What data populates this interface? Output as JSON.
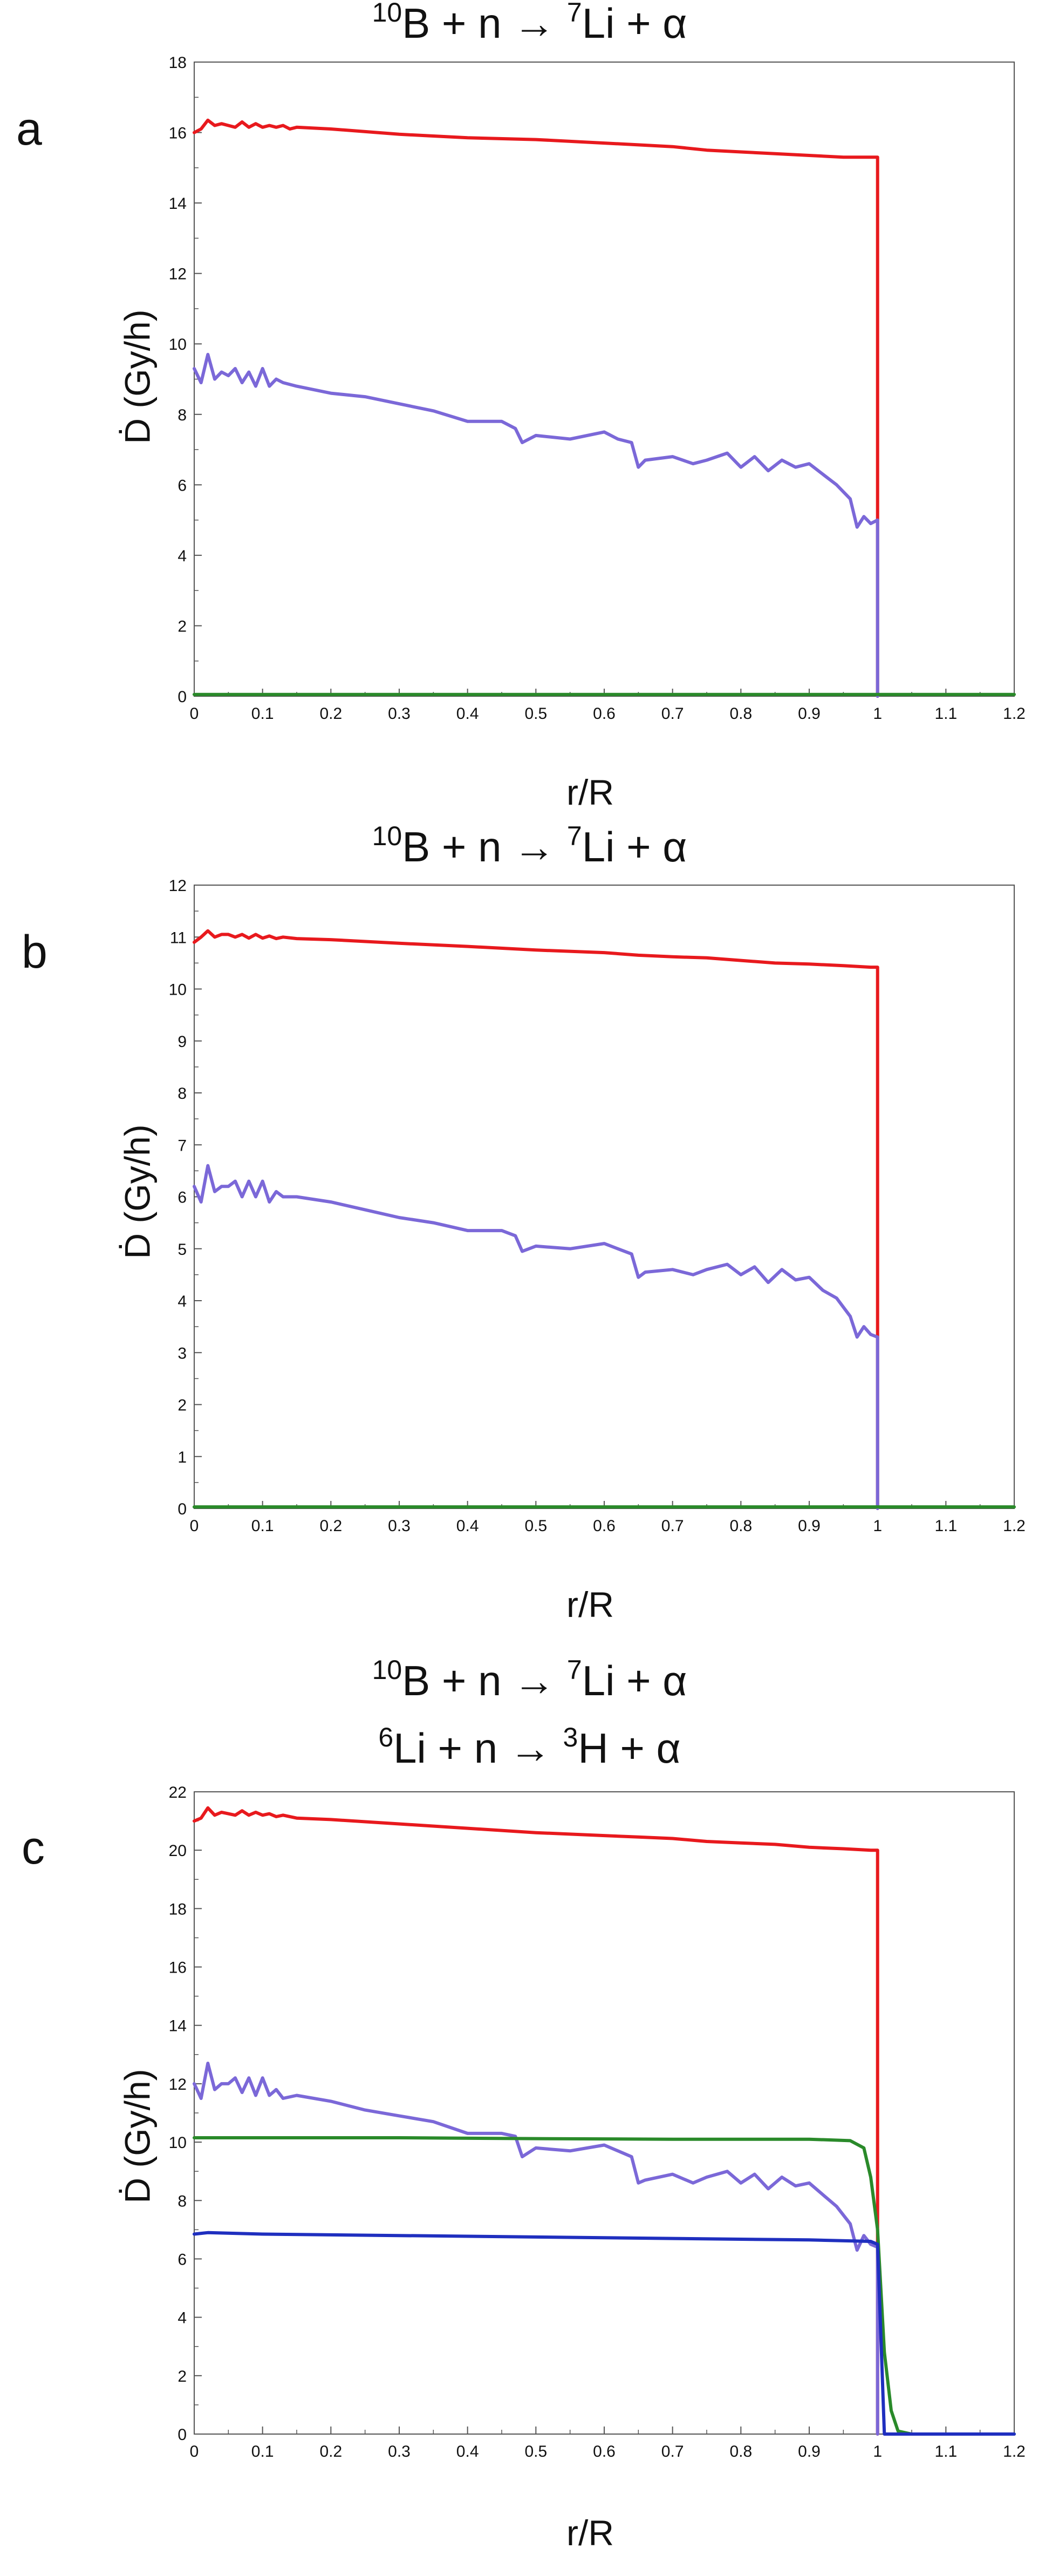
{
  "panels": [
    {
      "label": "a",
      "title_lines": [
        [
          {
            "sup": "10"
          },
          {
            "t": "B + n → "
          },
          {
            "sup": "7"
          },
          {
            "t": "Li + α"
          }
        ]
      ]
    },
    {
      "label": "b",
      "title_lines": [
        [
          {
            "sup": "10"
          },
          {
            "t": "B + n → "
          },
          {
            "sup": "7"
          },
          {
            "t": "Li + α"
          }
        ]
      ]
    },
    {
      "label": "c",
      "title_lines": [
        [
          {
            "sup": "10"
          },
          {
            "t": "B + n → "
          },
          {
            "sup": "7"
          },
          {
            "t": "Li + α"
          }
        ],
        [
          {
            "sup": "6"
          },
          {
            "t": "Li + n → "
          },
          {
            "sup": "3"
          },
          {
            "t": "H + α"
          }
        ]
      ]
    }
  ],
  "chart_data": [
    {
      "type": "line",
      "title": "10B + n → 7Li + α",
      "xlabel": "r/R",
      "ylabel": "Ḋ (Gy/h)",
      "xlim": [
        0,
        1.2
      ],
      "ylim": [
        0,
        18
      ],
      "xticks": [
        "0",
        "0.1",
        "0.2",
        "0.3",
        "0.4",
        "0.5",
        "0.6",
        "0.7",
        "0.8",
        "0.9",
        "1",
        "1.1",
        "1.2"
      ],
      "yticks": [
        "0",
        "2",
        "4",
        "6",
        "8",
        "10",
        "12",
        "14",
        "16",
        "18"
      ],
      "grid": false,
      "series": [
        {
          "color": "#e8191d",
          "x": [
            0,
            0.01,
            0.02,
            0.03,
            0.04,
            0.05,
            0.06,
            0.07,
            0.08,
            0.09,
            0.1,
            0.11,
            0.12,
            0.13,
            0.14,
            0.15,
            0.2,
            0.3,
            0.4,
            0.5,
            0.6,
            0.65,
            0.7,
            0.75,
            0.8,
            0.85,
            0.9,
            0.95,
            0.99,
            1.0,
            1.0
          ],
          "y": [
            16.0,
            16.1,
            16.35,
            16.2,
            16.25,
            16.2,
            16.15,
            16.3,
            16.15,
            16.25,
            16.15,
            16.2,
            16.15,
            16.2,
            16.1,
            16.15,
            16.1,
            15.95,
            15.85,
            15.8,
            15.7,
            15.65,
            15.6,
            15.5,
            15.45,
            15.4,
            15.35,
            15.3,
            15.3,
            15.3,
            0
          ]
        },
        {
          "color": "#7b68d8",
          "x": [
            0,
            0.01,
            0.02,
            0.03,
            0.04,
            0.05,
            0.06,
            0.07,
            0.08,
            0.09,
            0.1,
            0.11,
            0.12,
            0.13,
            0.15,
            0.2,
            0.25,
            0.3,
            0.35,
            0.4,
            0.45,
            0.47,
            0.48,
            0.5,
            0.55,
            0.6,
            0.62,
            0.64,
            0.65,
            0.66,
            0.7,
            0.73,
            0.75,
            0.78,
            0.8,
            0.82,
            0.84,
            0.86,
            0.88,
            0.9,
            0.92,
            0.94,
            0.96,
            0.97,
            0.98,
            0.99,
            1.0,
            1.0
          ],
          "y": [
            9.3,
            8.9,
            9.7,
            9.0,
            9.2,
            9.1,
            9.3,
            8.9,
            9.2,
            8.8,
            9.3,
            8.8,
            9.0,
            8.9,
            8.8,
            8.6,
            8.5,
            8.3,
            8.1,
            7.8,
            7.8,
            7.6,
            7.2,
            7.4,
            7.3,
            7.5,
            7.3,
            7.2,
            6.5,
            6.7,
            6.8,
            6.6,
            6.7,
            6.9,
            6.5,
            6.8,
            6.4,
            6.7,
            6.5,
            6.6,
            6.3,
            6.0,
            5.6,
            4.8,
            5.1,
            4.9,
            5.0,
            0
          ]
        },
        {
          "color": "#2a8a2a",
          "x": [
            0,
            1.2
          ],
          "y": [
            0.05,
            0.05
          ]
        }
      ]
    },
    {
      "type": "line",
      "title": "10B + n → 7Li + α",
      "xlabel": "r/R",
      "ylabel": "Ḋ (Gy/h)",
      "xlim": [
        0,
        1.2
      ],
      "ylim": [
        0,
        12
      ],
      "xticks": [
        "0",
        "0.1",
        "0.2",
        "0.3",
        "0.4",
        "0.5",
        "0.6",
        "0.7",
        "0.8",
        "0.9",
        "1",
        "1.1",
        "1.2"
      ],
      "yticks": [
        "0",
        "1",
        "2",
        "3",
        "4",
        "5",
        "6",
        "7",
        "8",
        "9",
        "10",
        "11",
        "12"
      ],
      "grid": false,
      "series": [
        {
          "color": "#e8191d",
          "x": [
            0,
            0.01,
            0.02,
            0.03,
            0.04,
            0.05,
            0.06,
            0.07,
            0.08,
            0.09,
            0.1,
            0.11,
            0.12,
            0.13,
            0.15,
            0.2,
            0.3,
            0.4,
            0.5,
            0.6,
            0.65,
            0.7,
            0.75,
            0.8,
            0.85,
            0.9,
            0.95,
            0.99,
            1.0,
            1.0
          ],
          "y": [
            10.9,
            11.0,
            11.12,
            11.0,
            11.05,
            11.05,
            11.0,
            11.05,
            10.98,
            11.05,
            10.98,
            11.02,
            10.97,
            11.0,
            10.97,
            10.95,
            10.88,
            10.82,
            10.75,
            10.7,
            10.65,
            10.62,
            10.6,
            10.55,
            10.5,
            10.48,
            10.45,
            10.42,
            10.42,
            0
          ]
        },
        {
          "color": "#7b68d8",
          "x": [
            0,
            0.01,
            0.02,
            0.03,
            0.04,
            0.05,
            0.06,
            0.07,
            0.08,
            0.09,
            0.1,
            0.11,
            0.12,
            0.13,
            0.15,
            0.2,
            0.25,
            0.3,
            0.35,
            0.4,
            0.45,
            0.47,
            0.48,
            0.5,
            0.55,
            0.6,
            0.62,
            0.64,
            0.65,
            0.66,
            0.7,
            0.73,
            0.75,
            0.78,
            0.8,
            0.82,
            0.84,
            0.86,
            0.88,
            0.9,
            0.92,
            0.94,
            0.96,
            0.97,
            0.98,
            0.99,
            1.0,
            1.0
          ],
          "y": [
            6.2,
            5.9,
            6.6,
            6.1,
            6.2,
            6.2,
            6.3,
            6.0,
            6.3,
            6.0,
            6.3,
            5.9,
            6.1,
            6.0,
            6.0,
            5.9,
            5.75,
            5.6,
            5.5,
            5.35,
            5.35,
            5.25,
            4.95,
            5.05,
            5.0,
            5.1,
            5.0,
            4.9,
            4.45,
            4.55,
            4.6,
            4.5,
            4.6,
            4.7,
            4.5,
            4.65,
            4.35,
            4.6,
            4.4,
            4.45,
            4.2,
            4.05,
            3.7,
            3.3,
            3.5,
            3.35,
            3.3,
            0
          ]
        },
        {
          "color": "#2a8a2a",
          "x": [
            0,
            1.2
          ],
          "y": [
            0.03,
            0.03
          ]
        }
      ]
    },
    {
      "type": "line",
      "title": "10B + n → 7Li + α / 6Li + n → 3H + α",
      "xlabel": "r/R",
      "ylabel": "Ḋ (Gy/h)",
      "xlim": [
        0,
        1.2
      ],
      "ylim": [
        0,
        22
      ],
      "xticks": [
        "0",
        "0.1",
        "0.2",
        "0.3",
        "0.4",
        "0.5",
        "0.6",
        "0.7",
        "0.8",
        "0.9",
        "1",
        "1.1",
        "1.2"
      ],
      "yticks": [
        "0",
        "2",
        "4",
        "6",
        "8",
        "10",
        "12",
        "14",
        "16",
        "18",
        "20",
        "22"
      ],
      "grid": false,
      "series": [
        {
          "color": "#e8191d",
          "x": [
            0,
            0.01,
            0.02,
            0.03,
            0.04,
            0.05,
            0.06,
            0.07,
            0.08,
            0.09,
            0.1,
            0.11,
            0.12,
            0.13,
            0.15,
            0.2,
            0.3,
            0.4,
            0.5,
            0.6,
            0.65,
            0.7,
            0.75,
            0.8,
            0.85,
            0.9,
            0.95,
            0.99,
            1.0,
            1.0
          ],
          "y": [
            21.0,
            21.1,
            21.45,
            21.2,
            21.3,
            21.25,
            21.2,
            21.35,
            21.2,
            21.3,
            21.2,
            21.25,
            21.15,
            21.2,
            21.1,
            21.05,
            20.9,
            20.75,
            20.6,
            20.5,
            20.45,
            20.4,
            20.3,
            20.25,
            20.2,
            20.1,
            20.05,
            20.0,
            20.0,
            0
          ]
        },
        {
          "color": "#7b68d8",
          "x": [
            0,
            0.01,
            0.02,
            0.03,
            0.04,
            0.05,
            0.06,
            0.07,
            0.08,
            0.09,
            0.1,
            0.11,
            0.12,
            0.13,
            0.15,
            0.2,
            0.25,
            0.3,
            0.35,
            0.4,
            0.45,
            0.47,
            0.48,
            0.5,
            0.55,
            0.6,
            0.62,
            0.64,
            0.65,
            0.66,
            0.7,
            0.73,
            0.75,
            0.78,
            0.8,
            0.82,
            0.84,
            0.86,
            0.88,
            0.9,
            0.92,
            0.94,
            0.96,
            0.97,
            0.98,
            0.99,
            1.0,
            1.0
          ],
          "y": [
            12.0,
            11.5,
            12.7,
            11.8,
            12.0,
            12.0,
            12.2,
            11.7,
            12.2,
            11.6,
            12.2,
            11.6,
            11.8,
            11.5,
            11.6,
            11.4,
            11.1,
            10.9,
            10.7,
            10.3,
            10.3,
            10.2,
            9.5,
            9.8,
            9.7,
            9.9,
            9.7,
            9.5,
            8.6,
            8.7,
            8.9,
            8.6,
            8.8,
            9.0,
            8.6,
            8.9,
            8.4,
            8.8,
            8.5,
            8.6,
            8.2,
            7.8,
            7.2,
            6.3,
            6.8,
            6.5,
            6.4,
            0
          ]
        },
        {
          "color": "#2a8a2a",
          "x": [
            0,
            0.1,
            0.3,
            0.5,
            0.7,
            0.9,
            0.96,
            0.98,
            0.99,
            1.0,
            1.01,
            1.02,
            1.03,
            1.05,
            1.2
          ],
          "y": [
            10.15,
            10.15,
            10.15,
            10.12,
            10.1,
            10.1,
            10.05,
            9.8,
            8.8,
            7.0,
            2.8,
            0.8,
            0.1,
            0,
            0
          ]
        },
        {
          "color": "#1f2fbf",
          "x": [
            0,
            0.02,
            0.1,
            0.3,
            0.5,
            0.7,
            0.9,
            0.99,
            1.0,
            1.01,
            1.2
          ],
          "y": [
            6.85,
            6.9,
            6.85,
            6.8,
            6.75,
            6.7,
            6.65,
            6.6,
            6.5,
            0,
            0
          ]
        }
      ]
    }
  ]
}
